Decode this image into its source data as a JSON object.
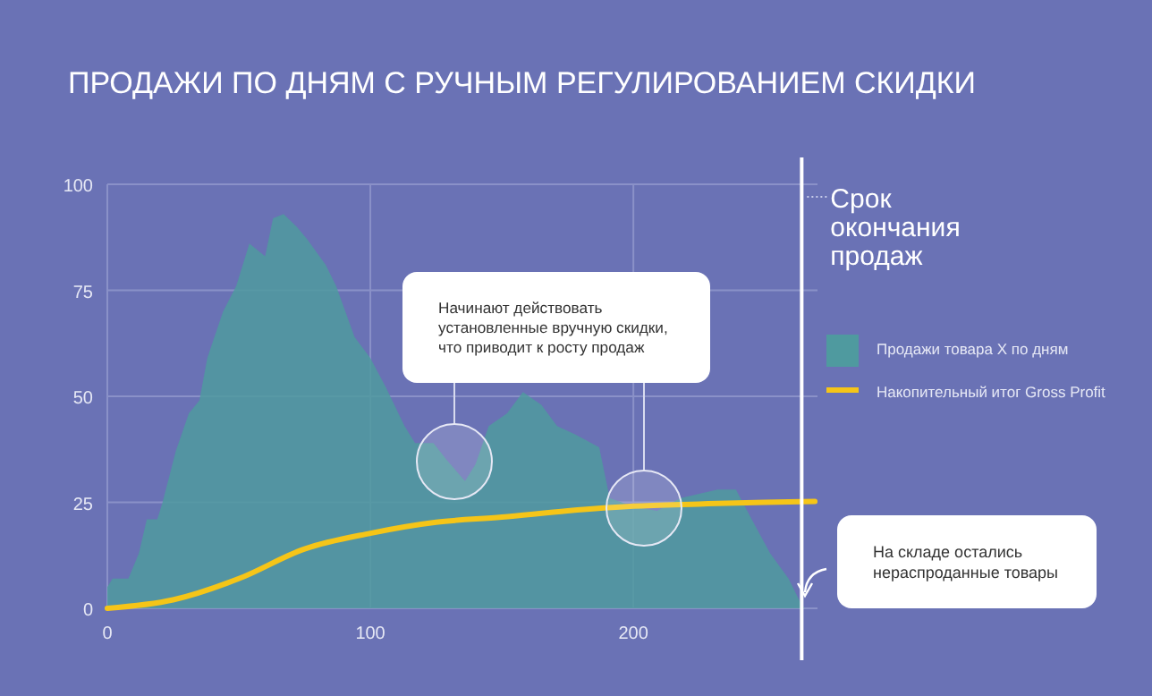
{
  "chart_data": {
    "type": "area",
    "title": "ПРОДАЖИ ПО ДНЯМ С РУЧНЫМ РЕГУЛИРОВАНИЕМ СКИДКИ",
    "xlim": [
      0,
      270
    ],
    "xticks": [
      0,
      100,
      200
    ],
    "ylim": [
      0,
      100
    ],
    "yticks": [
      0,
      25,
      50,
      75,
      100
    ],
    "grid": true,
    "legend": "right",
    "series": [
      {
        "name": "Продажи товара X по дням",
        "color": "#4f9a9f",
        "x": [
          0,
          2,
          8,
          12,
          15,
          19,
          21,
          26,
          31,
          35,
          38,
          44,
          49,
          54,
          60,
          63,
          67,
          72,
          76,
          83,
          87,
          94,
          100,
          106,
          113,
          117,
          124,
          129,
          136,
          140,
          145,
          152,
          158,
          165,
          171,
          178,
          187,
          191,
          200,
          209,
          218,
          232,
          239,
          245,
          252,
          259,
          263,
          265
        ],
        "values": [
          5,
          7,
          7,
          13,
          21,
          21,
          25,
          37,
          46,
          49,
          59,
          70,
          76,
          86,
          83,
          92,
          93,
          90,
          87,
          81,
          76,
          64,
          59,
          52,
          43,
          39,
          39,
          35,
          30,
          34,
          43,
          46,
          51,
          48,
          43,
          41,
          38,
          26,
          24,
          23,
          26,
          28,
          28,
          21,
          13,
          7,
          2,
          0
        ]
      },
      {
        "name": "Накопительный итог Gross Profit",
        "type": "line",
        "color": "#f5c518",
        "x": [
          0,
          25,
          50,
          75,
          100,
          125,
          150,
          175,
          200,
          225,
          250,
          269
        ],
        "values": [
          0,
          2,
          7,
          14,
          17.7,
          20.3,
          21.5,
          23,
          24.1,
          24.6,
          25,
          25.2
        ]
      }
    ],
    "ref_lines": [
      {
        "axis": "x",
        "value": 264,
        "label": "Срок\nокончания\nпродаж",
        "color": "#ffffff"
      }
    ],
    "annotations": [
      "Начинают действовать\nустановленные вручную скидки,\nчто приводит к росту продаж",
      "На складе остались\nнераспроданные товары"
    ]
  }
}
